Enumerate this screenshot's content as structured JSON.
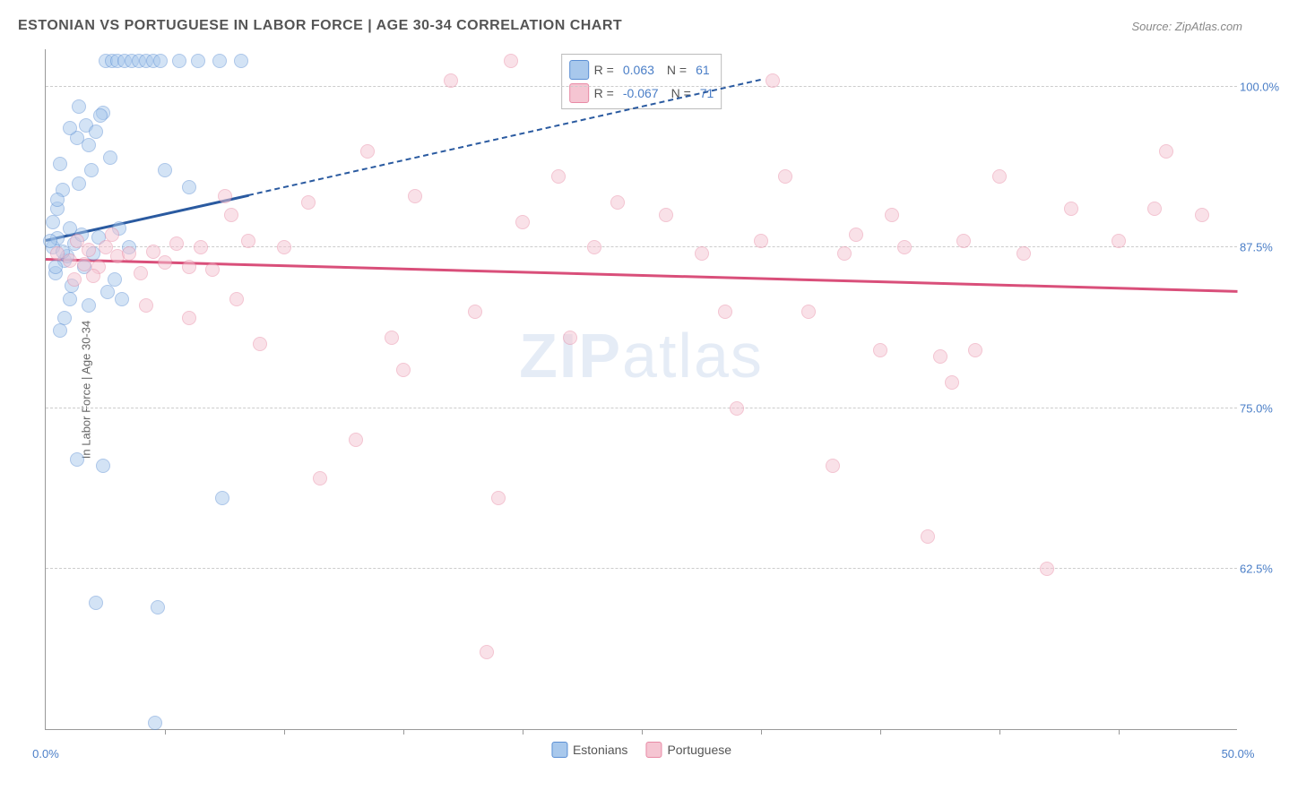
{
  "title": "ESTONIAN VS PORTUGUESE IN LABOR FORCE | AGE 30-34 CORRELATION CHART",
  "source": "Source: ZipAtlas.com",
  "watermark_part1": "ZIP",
  "watermark_part2": "atlas",
  "y_axis_title": "In Labor Force | Age 30-34",
  "chart": {
    "type": "scatter",
    "background_color": "#ffffff",
    "grid_color": "#cccccc",
    "axis_color": "#999999",
    "tick_label_color": "#4a7ec7",
    "xlim": [
      0,
      50
    ],
    "ylim": [
      50,
      103
    ],
    "y_ticks": [
      62.5,
      75.0,
      87.5,
      100.0
    ],
    "y_tick_labels": [
      "62.5%",
      "75.0%",
      "87.5%",
      "100.0%"
    ],
    "x_ticks": [
      0,
      10,
      20,
      30,
      40,
      50
    ],
    "x_tick_labels": [
      "0.0%",
      "",
      "",
      "",
      "",
      "50.0%"
    ],
    "x_minor_ticks": [
      5,
      10,
      15,
      20,
      25,
      30,
      35,
      40,
      45
    ],
    "marker_radius": 8,
    "marker_opacity": 0.5,
    "marker_border_width": 1.5,
    "series": [
      {
        "name": "Estonians",
        "fill_color": "#a8c8ec",
        "border_color": "#5b8fd4",
        "trend_color": "#2a5aa0",
        "R": "0.063",
        "N": "61",
        "trend_solid": {
          "x1": 0,
          "y1": 88.0,
          "x2": 8.5,
          "y2": 91.5
        },
        "trend_dashed": {
          "x1": 8.5,
          "y1": 91.5,
          "x2": 30,
          "y2": 100.5
        },
        "points": [
          [
            0.3,
            87.5
          ],
          [
            0.5,
            88.2
          ],
          [
            0.8,
            86.5
          ],
          [
            1.0,
            89.0
          ],
          [
            1.2,
            87.8
          ],
          [
            0.6,
            94.0
          ],
          [
            0.4,
            85.5
          ],
          [
            0.7,
            92.0
          ],
          [
            1.5,
            88.5
          ],
          [
            0.9,
            86.8
          ],
          [
            1.1,
            84.5
          ],
          [
            1.3,
            96.0
          ],
          [
            1.8,
            95.5
          ],
          [
            2.0,
            87.0
          ],
          [
            2.2,
            88.3
          ],
          [
            0.5,
            90.5
          ],
          [
            1.6,
            86.0
          ],
          [
            2.5,
            102.0
          ],
          [
            2.8,
            102.0
          ],
          [
            3.0,
            102.0
          ],
          [
            3.3,
            102.0
          ],
          [
            3.6,
            102.0
          ],
          [
            3.9,
            102.0
          ],
          [
            4.2,
            102.0
          ],
          [
            4.5,
            102.0
          ],
          [
            4.8,
            102.0
          ],
          [
            5.6,
            102.0
          ],
          [
            6.4,
            102.0
          ],
          [
            7.3,
            102.0
          ],
          [
            8.2,
            102.0
          ],
          [
            1.7,
            97.0
          ],
          [
            2.1,
            96.5
          ],
          [
            2.4,
            98.0
          ],
          [
            1.9,
            93.5
          ],
          [
            2.7,
            94.5
          ],
          [
            1.4,
            92.5
          ],
          [
            3.1,
            89.0
          ],
          [
            2.3,
            97.8
          ],
          [
            5.0,
            93.5
          ],
          [
            6.0,
            92.2
          ],
          [
            3.5,
            87.5
          ],
          [
            2.9,
            85.0
          ],
          [
            2.6,
            84.0
          ],
          [
            1.8,
            83.0
          ],
          [
            3.2,
            83.5
          ],
          [
            0.8,
            82.0
          ],
          [
            1.0,
            83.5
          ],
          [
            0.6,
            81.0
          ],
          [
            2.4,
            70.5
          ],
          [
            1.3,
            71.0
          ],
          [
            2.1,
            59.8
          ],
          [
            4.7,
            59.5
          ],
          [
            7.4,
            68.0
          ],
          [
            4.6,
            50.5
          ],
          [
            1.0,
            96.8
          ],
          [
            1.4,
            98.5
          ],
          [
            0.3,
            89.5
          ],
          [
            0.5,
            91.2
          ],
          [
            0.2,
            88.0
          ],
          [
            0.7,
            87.2
          ],
          [
            0.4,
            86.0
          ]
        ]
      },
      {
        "name": "Portuguese",
        "fill_color": "#f5c5d2",
        "border_color": "#e88aa5",
        "trend_color": "#d94f7a",
        "R": "-0.067",
        "N": "71",
        "trend_solid": {
          "x1": 0,
          "y1": 86.5,
          "x2": 50,
          "y2": 84.0
        },
        "points": [
          [
            0.5,
            87.0
          ],
          [
            1.0,
            86.5
          ],
          [
            1.3,
            88.0
          ],
          [
            1.8,
            87.3
          ],
          [
            2.2,
            86.0
          ],
          [
            2.5,
            87.5
          ],
          [
            3.0,
            86.8
          ],
          [
            3.5,
            87.0
          ],
          [
            4.0,
            85.5
          ],
          [
            4.5,
            87.2
          ],
          [
            5.0,
            86.3
          ],
          [
            5.5,
            87.8
          ],
          [
            6.0,
            86.0
          ],
          [
            6.5,
            87.5
          ],
          [
            7.0,
            85.8
          ],
          [
            7.8,
            90.0
          ],
          [
            1.2,
            85.0
          ],
          [
            1.6,
            86.2
          ],
          [
            2.0,
            85.3
          ],
          [
            2.8,
            88.5
          ],
          [
            8.0,
            83.5
          ],
          [
            7.5,
            91.5
          ],
          [
            9.0,
            80.0
          ],
          [
            13.5,
            95.0
          ],
          [
            14.5,
            80.5
          ],
          [
            15.5,
            91.5
          ],
          [
            17.0,
            100.5
          ],
          [
            18.0,
            82.5
          ],
          [
            19.0,
            68.0
          ],
          [
            19.5,
            102.0
          ],
          [
            20.0,
            89.5
          ],
          [
            21.5,
            93.0
          ],
          [
            22.0,
            80.5
          ],
          [
            23.0,
            87.5
          ],
          [
            24.0,
            91.0
          ],
          [
            26.0,
            90.0
          ],
          [
            27.5,
            87.0
          ],
          [
            28.5,
            82.5
          ],
          [
            29.0,
            75.0
          ],
          [
            30.0,
            88.0
          ],
          [
            31.0,
            93.0
          ],
          [
            32.0,
            82.5
          ],
          [
            33.0,
            70.5
          ],
          [
            33.5,
            87.0
          ],
          [
            34.0,
            88.5
          ],
          [
            35.0,
            79.5
          ],
          [
            35.5,
            90.0
          ],
          [
            36.0,
            87.5
          ],
          [
            37.0,
            65.0
          ],
          [
            37.5,
            79.0
          ],
          [
            38.0,
            77.0
          ],
          [
            38.5,
            88.0
          ],
          [
            39.0,
            79.5
          ],
          [
            40.0,
            93.0
          ],
          [
            41.0,
            87.0
          ],
          [
            42.0,
            62.5
          ],
          [
            43.0,
            90.5
          ],
          [
            45.0,
            88.0
          ],
          [
            46.5,
            90.5
          ],
          [
            47.0,
            95.0
          ],
          [
            48.5,
            90.0
          ],
          [
            11.5,
            69.5
          ],
          [
            13.0,
            72.5
          ],
          [
            18.5,
            56.0
          ],
          [
            30.5,
            100.5
          ],
          [
            15.0,
            78.0
          ],
          [
            8.5,
            88.0
          ],
          [
            10.0,
            87.5
          ],
          [
            11.0,
            91.0
          ],
          [
            6.0,
            82.0
          ],
          [
            4.2,
            83.0
          ]
        ]
      }
    ]
  },
  "legend_labels": {
    "R": "R =",
    "N": "N ="
  }
}
